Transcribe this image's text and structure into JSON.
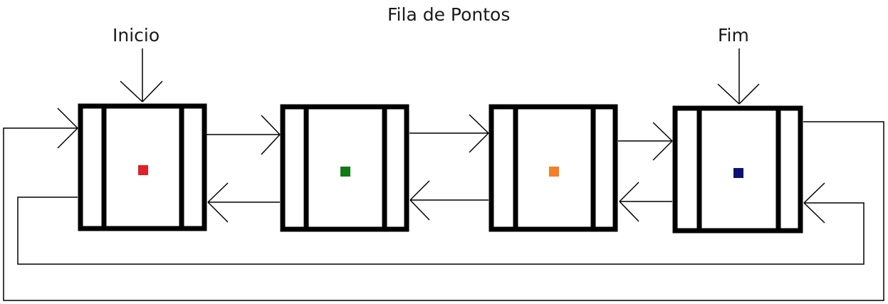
{
  "diagram": {
    "title": "Fila de Pontos",
    "start_label": "Inicio",
    "end_label": "Fim",
    "nodes": [
      {
        "id": "node-1",
        "dot_color": "#e0202a"
      },
      {
        "id": "node-2",
        "dot_color": "#127a14"
      },
      {
        "id": "node-3",
        "dot_color": "#f57f26"
      },
      {
        "id": "node-4",
        "dot_color": "#0c1175"
      }
    ],
    "line_color": "#000000"
  }
}
